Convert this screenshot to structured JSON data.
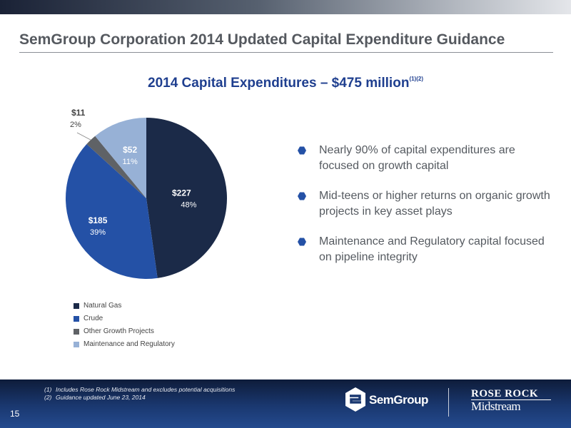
{
  "slide": {
    "title": "SemGroup Corporation 2014 Updated Capital Expenditure Guidance",
    "page_number": "15"
  },
  "chart_heading": {
    "text": "2014 Capital Expenditures – $475 million",
    "superscript": "(1)(2)"
  },
  "chart_data": {
    "type": "pie",
    "title": "2014 Capital Expenditures – $475 million",
    "total": 475,
    "unit": "$ million",
    "slices": [
      {
        "name": "Natural Gas",
        "value": 227,
        "label": "$227",
        "percent_label": "48%",
        "color": "#1b2a48"
      },
      {
        "name": "Crude",
        "value": 185,
        "label": "$185",
        "percent_label": "39%",
        "color": "#2451a6"
      },
      {
        "name": "Other Growth Projects",
        "value": 11,
        "label": "$11",
        "percent_label": "2%",
        "color": "#5f6266"
      },
      {
        "name": "Maintenance and Regulatory",
        "value": 52,
        "label": "$52",
        "percent_label": "11%",
        "color": "#97b1d6"
      }
    ],
    "legend_position": "bottom-left"
  },
  "bullets": [
    "Nearly 90% of capital expenditures are focused on growth capital",
    "Mid-teens or higher returns on organic growth projects in key asset plays",
    "Maintenance and Regulatory capital focused on pipeline integrity"
  ],
  "bullet_color": "#2451a6",
  "footnotes": [
    {
      "mark": "(1)",
      "text": "Includes Rose Rock Midstream and excludes potential acquisitions"
    },
    {
      "mark": "(2)",
      "text": "Guidance updated June 23, 2014"
    }
  ],
  "logos": {
    "semgroup": "SemGroup",
    "rose_rock_top": "ROSE ROCK",
    "rose_rock_bottom": "Midstream"
  }
}
